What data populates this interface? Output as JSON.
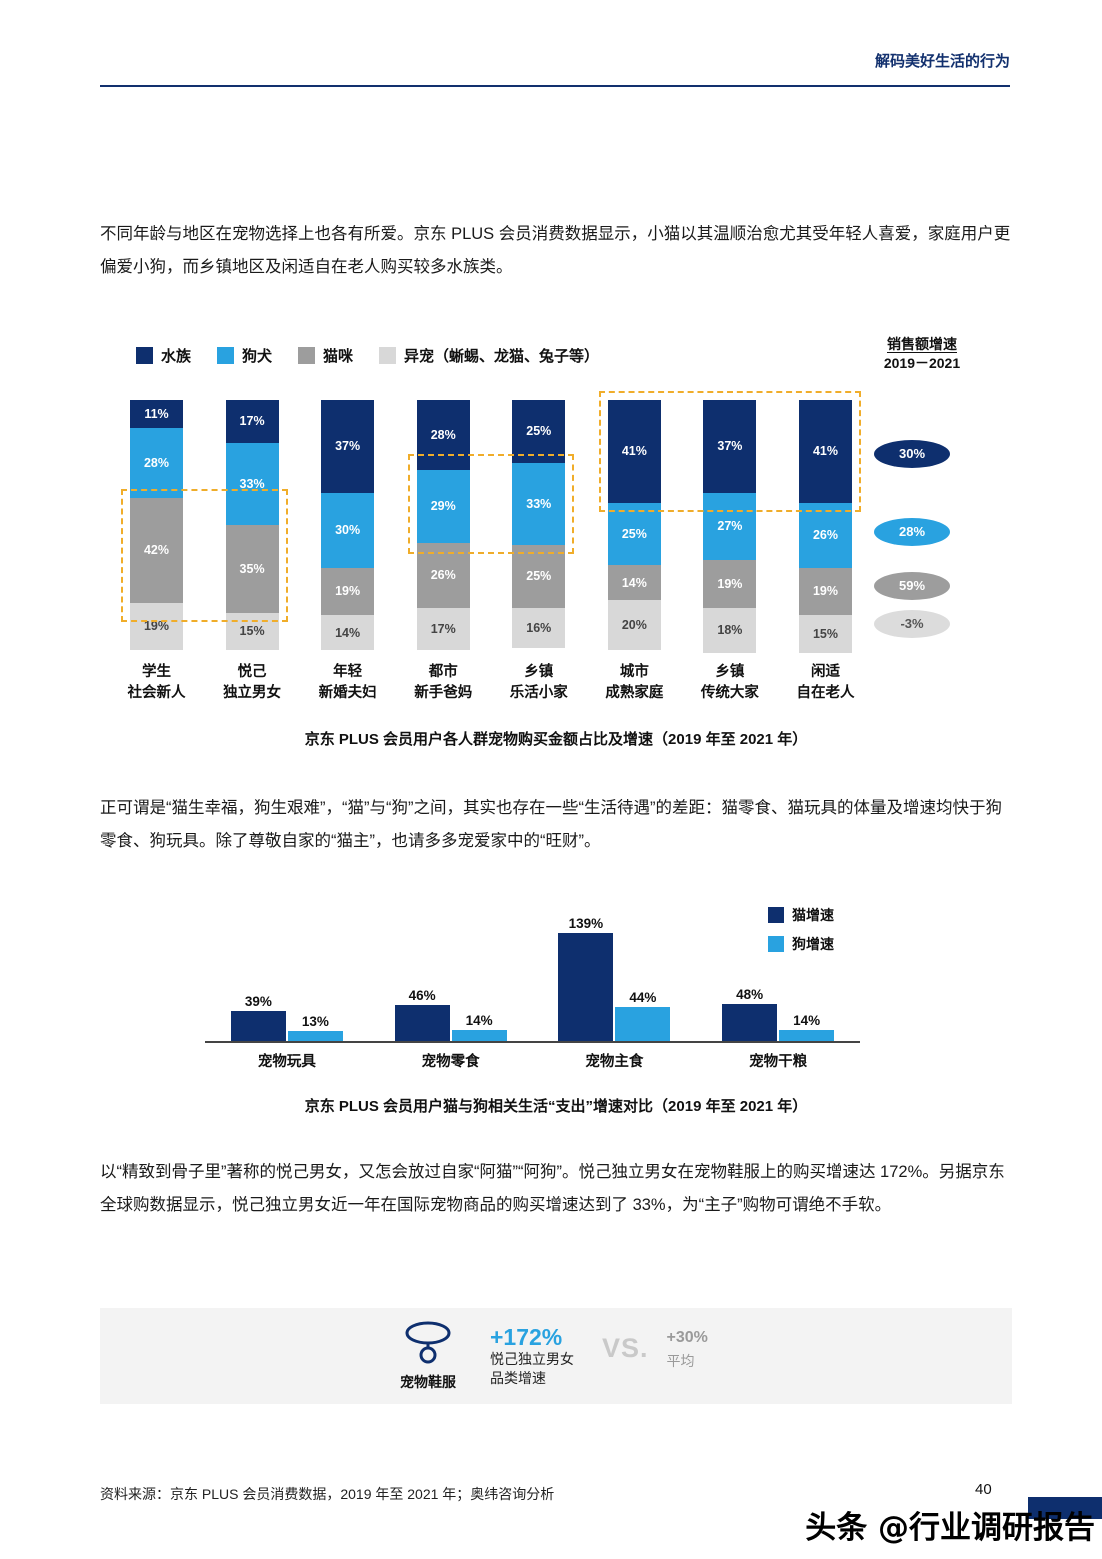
{
  "header": {
    "title": "解码美好生活的行为"
  },
  "paragraphs": {
    "p1": "不同年龄与地区在宠物选择上也各有所爱。京东 PLUS 会员消费数据显示，小猫以其温顺治愈尤其受年轻人喜爱，家庭用户更偏爱小狗，而乡镇地区及闲适自在老人购买较多水族类。",
    "p2": "正可谓是“猫生幸福，狗生艰难”，“猫”与“狗”之间，其实也存在一些“生活待遇”的差距：猫零食、猫玩具的体量及增速均快于狗零食、狗玩具。除了尊敬自家的“猫主”，也请多多宠爱家中的“旺财”。",
    "p3": "以“精致到骨子里”著称的悦己男女，又怎会放过自家“阿猫”“阿狗”。悦己独立男女在宠物鞋服上的购买增速达 172%。另据京东全球购数据显示，悦己独立男女近一年在国际宠物商品的购买增速达到了 33%，为“主子”购物可谓绝不手软。"
  },
  "chart_data": [
    {
      "type": "bar",
      "variant": "stacked-percent",
      "title": "京东 PLUS 会员用户各人群宠物购买金额占比及增速（2019 年至 2021 年）",
      "categories": [
        [
          "学生",
          "社会新人"
        ],
        [
          "悦己",
          "独立男女"
        ],
        [
          "年轻",
          "新婚夫妇"
        ],
        [
          "都市",
          "新手爸妈"
        ],
        [
          "乡镇",
          "乐活小家"
        ],
        [
          "城市",
          "成熟家庭"
        ],
        [
          "乡镇",
          "传统大家"
        ],
        [
          "闲适",
          "自在老人"
        ]
      ],
      "series": [
        {
          "name": "水族",
          "color": "#0e2f6e",
          "label_color": "#ffffff",
          "values": [
            11,
            17,
            37,
            28,
            25,
            41,
            37,
            41
          ]
        },
        {
          "name": "狗犬",
          "color": "#29a2e0",
          "label_color": "#ffffff",
          "values": [
            28,
            33,
            30,
            29,
            33,
            25,
            27,
            26
          ]
        },
        {
          "name": "猫咪",
          "color": "#9d9d9d",
          "label_color": "#ffffff",
          "values": [
            42,
            35,
            19,
            26,
            25,
            14,
            19,
            19
          ]
        },
        {
          "name": "异宠（蜥蜴、龙猫、兔子等）",
          "color": "#d8d8d8",
          "label_color": "#444444",
          "values": [
            19,
            15,
            14,
            17,
            16,
            20,
            18,
            15
          ]
        }
      ],
      "growth_panel": {
        "title": "销售额增速",
        "period": "2019－2021",
        "items": [
          {
            "label": "30%",
            "color": "#0e2f6e",
            "text_color": "#ffffff"
          },
          {
            "label": "28%",
            "color": "#29a2e0",
            "text_color": "#ffffff"
          },
          {
            "label": "59%",
            "color": "#9d9d9d",
            "text_color": "#ffffff"
          },
          {
            "label": "-3%",
            "color": "#dcdcdc",
            "text_color": "#555555"
          }
        ]
      },
      "highlights": [
        {
          "from": 0,
          "to": 1,
          "segment": 2
        },
        {
          "from": 3,
          "to": 4,
          "segment": 1
        },
        {
          "from": 5,
          "to": 7,
          "segment": 0
        }
      ],
      "highlight_color": "#f0ad2a"
    },
    {
      "type": "bar",
      "variant": "grouped",
      "title": "京东 PLUS 会员用户猫与狗相关生活“支出”增速对比（2019 年至 2021 年）",
      "categories": [
        "宠物玩具",
        "宠物零食",
        "宠物主食",
        "宠物干粮"
      ],
      "series": [
        {
          "name": "猫增速",
          "color": "#0e2f6e",
          "values": [
            39,
            46,
            139,
            48
          ]
        },
        {
          "name": "狗增速",
          "color": "#29a2e0",
          "values": [
            13,
            14,
            44,
            14
          ]
        }
      ]
    }
  ],
  "highlight_card": {
    "icon_label": "宠物鞋服",
    "value": "+172%",
    "value_caption1": "悦己独立男女",
    "value_caption2": "品类增速",
    "vs": "VS.",
    "avg_value": "+30%",
    "avg_label": "平均"
  },
  "footer": {
    "source": "资料来源：京东 PLUS 会员消费数据，2019 年至 2021 年；奥纬咨询分析",
    "page_number": "40",
    "watermark": "头条 @行业调研报告"
  }
}
